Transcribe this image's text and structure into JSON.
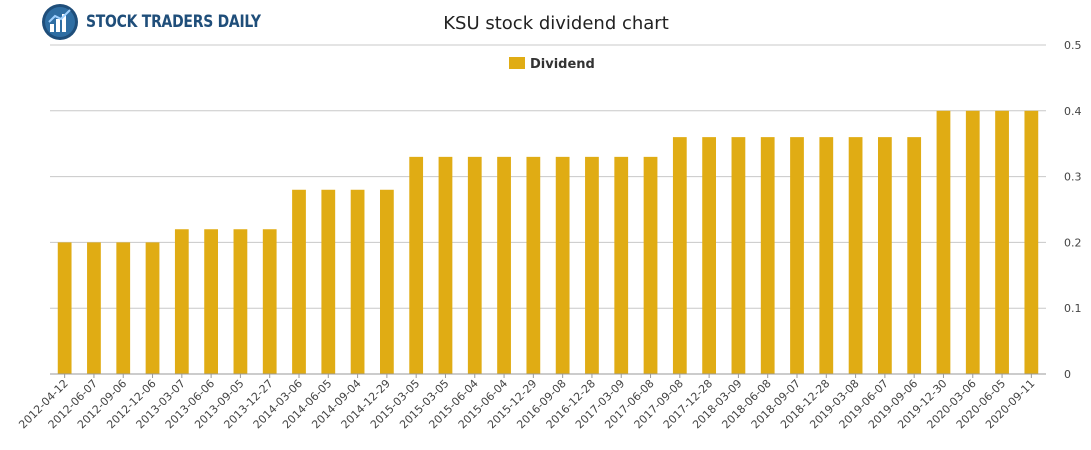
{
  "brand": {
    "name": "STOCK TRADERS DAILY",
    "logo": "bar-chart-globe-icon"
  },
  "chart_data": {
    "type": "bar",
    "title": "KSU stock dividend chart",
    "xlabel": "",
    "ylabel": "",
    "ylim": [
      0,
      0.5
    ],
    "yticks": [
      0,
      0.1,
      0.2,
      0.3,
      0.4,
      0.5
    ],
    "grid": true,
    "legend": "top-center",
    "bar_color": "#e0ac14",
    "categories": [
      "2012-04-12",
      "2012-06-07",
      "2012-09-06",
      "2012-12-06",
      "2013-03-07",
      "2013-06-06",
      "2013-09-05",
      "2013-12-27",
      "2014-03-06",
      "2014-06-05",
      "2014-09-04",
      "2014-12-29",
      "2015-03-05",
      "2015-03-05",
      "2015-06-04",
      "2015-06-04",
      "2015-12-29",
      "2016-09-08",
      "2016-12-28",
      "2017-03-09",
      "2017-06-08",
      "2017-09-08",
      "2017-12-28",
      "2018-03-09",
      "2018-06-08",
      "2018-09-07",
      "2018-12-28",
      "2019-03-08",
      "2019-06-07",
      "2019-09-06",
      "2019-12-30",
      "2020-03-06",
      "2020-06-05",
      "2020-09-11"
    ],
    "series": [
      {
        "name": "Dividend",
        "values": [
          0.2,
          0.2,
          0.2,
          0.2,
          0.22,
          0.22,
          0.22,
          0.22,
          0.28,
          0.28,
          0.28,
          0.28,
          0.33,
          0.33,
          0.33,
          0.33,
          0.33,
          0.33,
          0.33,
          0.33,
          0.33,
          0.36,
          0.36,
          0.36,
          0.36,
          0.36,
          0.36,
          0.36,
          0.36,
          0.36,
          0.4,
          0.4,
          0.4,
          0.4
        ]
      }
    ]
  }
}
